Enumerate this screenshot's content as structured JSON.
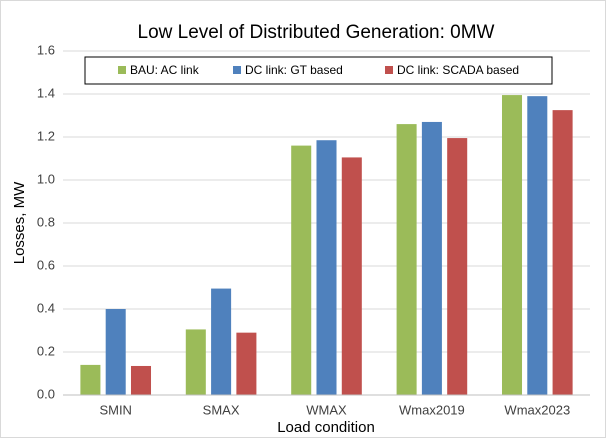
{
  "chart_data": {
    "type": "bar",
    "title": "Low Level of Distributed Generation: 0MW",
    "x_label": "Load condition",
    "y_label": "Losses, MW",
    "categories": [
      "SMIN",
      "SMAX",
      "WMAX",
      "Wmax2019",
      "Wmax2023"
    ],
    "series": [
      {
        "name": "BAU: AC link",
        "color": "#9bbb59",
        "values": [
          0.14,
          0.305,
          1.16,
          1.26,
          1.395
        ]
      },
      {
        "name": "DC link: GT based",
        "color": "#4f81bd",
        "values": [
          0.4,
          0.495,
          1.185,
          1.27,
          1.39
        ]
      },
      {
        "name": "DC link: SCADA based",
        "color": "#c0504d",
        "values": [
          0.135,
          0.29,
          1.105,
          1.195,
          1.325
        ]
      }
    ],
    "ylim": [
      0,
      1.6
    ],
    "yticks": [
      {
        "value": 0,
        "label": "0.0"
      },
      0.2,
      0.4,
      0.6,
      0.8,
      {
        "value": 1,
        "label": "1.0"
      },
      1.2,
      1.4,
      1.6
    ],
    "grid": true,
    "legend": "top"
  }
}
